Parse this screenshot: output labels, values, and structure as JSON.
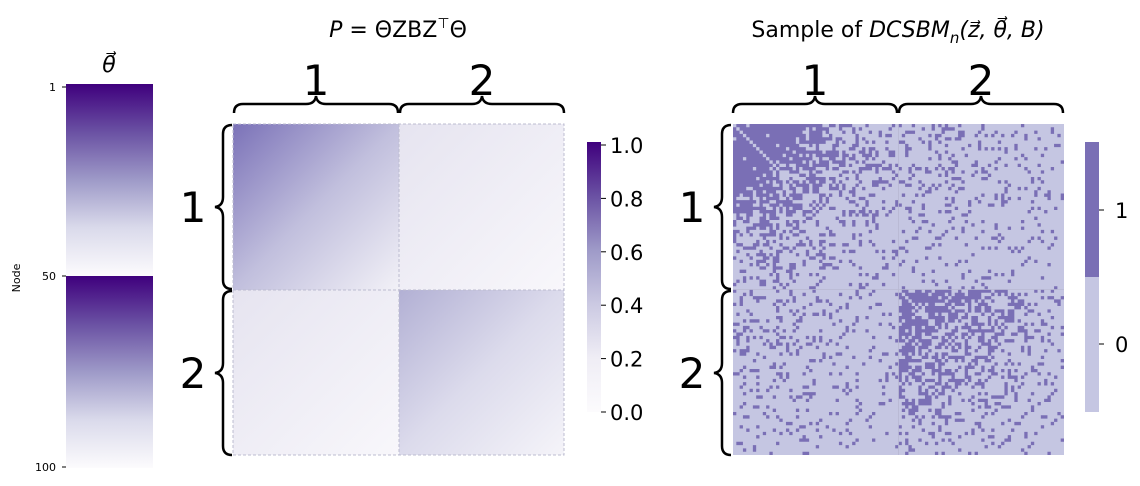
{
  "colors": {
    "purples_light": "#fcfbfd",
    "purples_dark": "#3f007d",
    "sample_zero": "#c5c6e2",
    "sample_one": "#7a6fb5",
    "block_border": "#bcbcd0",
    "brace": "#000000"
  },
  "chart_data": [
    {
      "type": "heatmap",
      "title": "θ⃗",
      "xlabel": "",
      "ylabel": "Node",
      "yticks": [
        "1",
        "50",
        "100"
      ],
      "n_nodes": 100,
      "blocks": 2,
      "values_description_per_block": "decreasing from 1.0 at first node of block to ~0.0 at last node",
      "colormap": "Purples",
      "value_range": [
        0,
        1
      ]
    },
    {
      "type": "heatmap",
      "title": "P = ΘZBZ⊤Θ",
      "block_labels_top": [
        "1",
        "2"
      ],
      "block_labels_left": [
        "1",
        "2"
      ],
      "block_matrix_B": [
        [
          0.6,
          0.1
        ],
        [
          0.1,
          0.4
        ]
      ],
      "colormap": "Purples",
      "colorbar_ticks": [
        "1.0",
        "0.8",
        "0.6",
        "0.4",
        "0.2",
        "0.0"
      ],
      "value_range": [
        0,
        1
      ]
    },
    {
      "type": "heatmap",
      "title": "Sample of DCSBMn(z⃗, θ⃗, B)",
      "block_labels_top": [
        "1",
        "2"
      ],
      "block_labels_left": [
        "1",
        "2"
      ],
      "binary": true,
      "colorbar_ticks": [
        "1",
        "0"
      ],
      "n_nodes": 100
    }
  ],
  "theta_panel": {
    "title_symbol": "θ⃗",
    "ylabel": "Node",
    "ticks": [
      "1",
      "50",
      "100"
    ]
  },
  "p_panel": {
    "title_lhs": "P",
    "title_eq": " = ",
    "title_rhs": "ΘZBZ",
    "title_sup": "⊤",
    "title_end": "Θ",
    "top_labels": [
      "1",
      "2"
    ],
    "left_labels": [
      "1",
      "2"
    ],
    "colorbar_ticks": [
      "1.0",
      "0.8",
      "0.6",
      "0.4",
      "0.2",
      "0.0"
    ]
  },
  "sample_panel": {
    "title_prefix": "Sample of ",
    "title_model": "DCSBM",
    "title_sub": "n",
    "title_args": "(z⃗, θ⃗, B)",
    "top_labels": [
      "1",
      "2"
    ],
    "left_labels": [
      "1",
      "2"
    ],
    "colorbar_ticks": [
      "1",
      "0"
    ]
  }
}
